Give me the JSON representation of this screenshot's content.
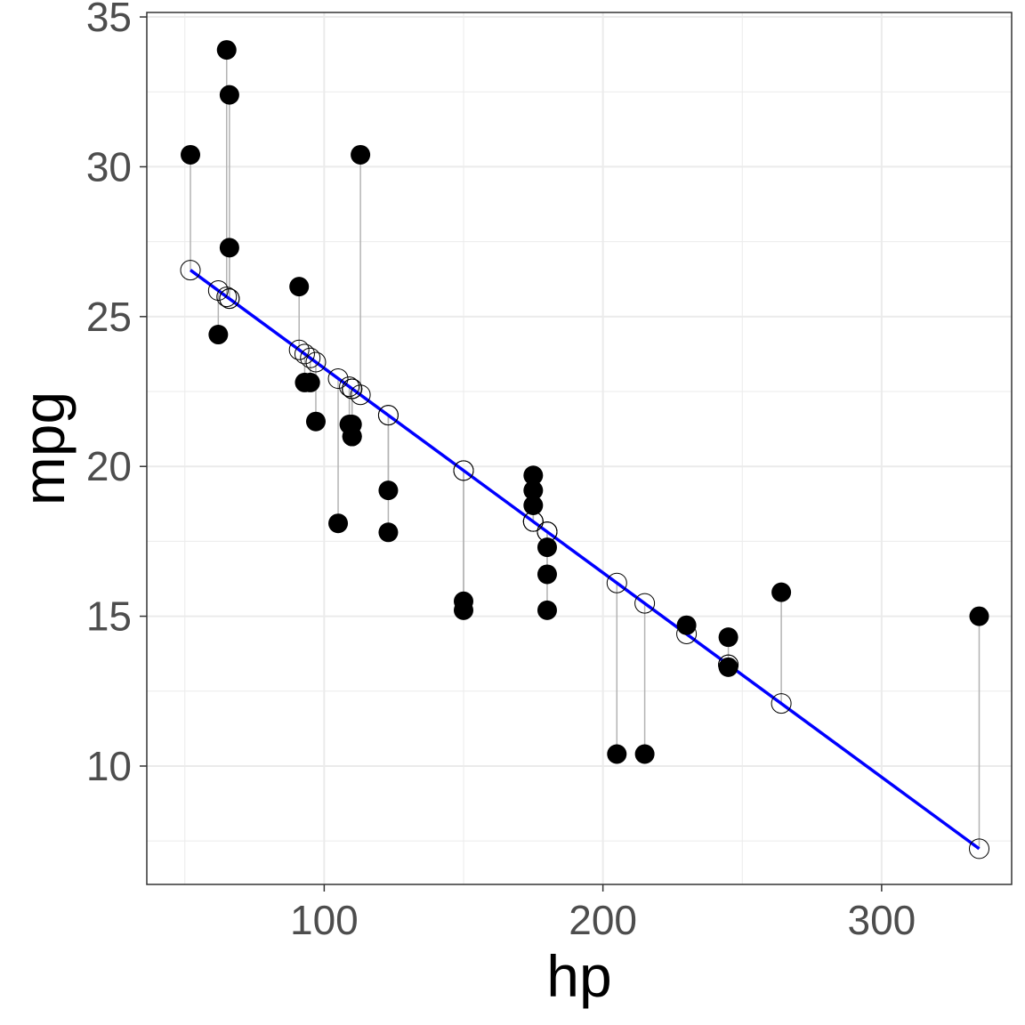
{
  "chart_data": {
    "type": "scatter",
    "xlabel": "hp",
    "ylabel": "mpg",
    "xlim": [
      36.35,
      346.65
    ],
    "ylim": [
      6.05,
      35.15
    ],
    "x_ticks": [
      100,
      200,
      300
    ],
    "y_ticks": [
      10,
      15,
      20,
      25,
      30,
      35
    ],
    "grid": true,
    "colors": {
      "observed": "#000000",
      "predicted_stroke": "#000000",
      "residual": "#b3b3b3",
      "fit_line": "#0000ff",
      "grid": "#ebebeb",
      "border": "#333333"
    },
    "fit": {
      "intercept": 30.0989,
      "slope": -0.06823
    },
    "series": [
      {
        "points": [
          {
            "hp": 110,
            "mpg": 21.0,
            "predicted": 22.59
          },
          {
            "hp": 110,
            "mpg": 21.0,
            "predicted": 22.59
          },
          {
            "hp": 93,
            "mpg": 22.8,
            "predicted": 23.75
          },
          {
            "hp": 110,
            "mpg": 21.4,
            "predicted": 22.59
          },
          {
            "hp": 175,
            "mpg": 18.7,
            "predicted": 18.16
          },
          {
            "hp": 105,
            "mpg": 18.1,
            "predicted": 22.93
          },
          {
            "hp": 245,
            "mpg": 14.3,
            "predicted": 13.38
          },
          {
            "hp": 62,
            "mpg": 24.4,
            "predicted": 25.87
          },
          {
            "hp": 95,
            "mpg": 22.8,
            "predicted": 23.62
          },
          {
            "hp": 123,
            "mpg": 19.2,
            "predicted": 21.71
          },
          {
            "hp": 123,
            "mpg": 17.8,
            "predicted": 21.71
          },
          {
            "hp": 180,
            "mpg": 16.4,
            "predicted": 17.82
          },
          {
            "hp": 180,
            "mpg": 17.3,
            "predicted": 17.82
          },
          {
            "hp": 180,
            "mpg": 15.2,
            "predicted": 17.82
          },
          {
            "hp": 205,
            "mpg": 10.4,
            "predicted": 16.11
          },
          {
            "hp": 215,
            "mpg": 10.4,
            "predicted": 15.43
          },
          {
            "hp": 230,
            "mpg": 14.7,
            "predicted": 14.41
          },
          {
            "hp": 66,
            "mpg": 32.4,
            "predicted": 25.6
          },
          {
            "hp": 52,
            "mpg": 30.4,
            "predicted": 26.55
          },
          {
            "hp": 65,
            "mpg": 33.9,
            "predicted": 25.66
          },
          {
            "hp": 97,
            "mpg": 21.5,
            "predicted": 23.48
          },
          {
            "hp": 150,
            "mpg": 15.5,
            "predicted": 19.86
          },
          {
            "hp": 150,
            "mpg": 15.2,
            "predicted": 19.86
          },
          {
            "hp": 245,
            "mpg": 13.3,
            "predicted": 13.38
          },
          {
            "hp": 175,
            "mpg": 19.2,
            "predicted": 18.16
          },
          {
            "hp": 66,
            "mpg": 27.3,
            "predicted": 25.6
          },
          {
            "hp": 91,
            "mpg": 26.0,
            "predicted": 23.89
          },
          {
            "hp": 113,
            "mpg": 30.4,
            "predicted": 22.39
          },
          {
            "hp": 264,
            "mpg": 15.8,
            "predicted": 12.09
          },
          {
            "hp": 175,
            "mpg": 19.7,
            "predicted": 18.16
          },
          {
            "hp": 335,
            "mpg": 15.0,
            "predicted": 7.24
          },
          {
            "hp": 109,
            "mpg": 21.4,
            "predicted": 22.66
          }
        ]
      }
    ]
  }
}
